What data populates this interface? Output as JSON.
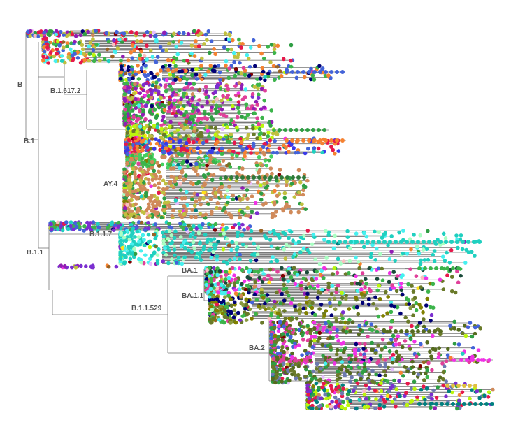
{
  "tree": {
    "clades": [
      {
        "id": "B",
        "label": "B"
      },
      {
        "id": "B.1",
        "label": "B.1"
      },
      {
        "id": "B.1.617.2",
        "label": "B.1.617.2"
      },
      {
        "id": "AY.4",
        "label": "AY.4"
      },
      {
        "id": "B.1.1",
        "label": "B.1.1"
      },
      {
        "id": "B.1.1.7",
        "label": "B.1.1.7"
      },
      {
        "id": "B.1.1.529",
        "label": "B.1.1.529"
      },
      {
        "id": "BA.1",
        "label": "BA.1"
      },
      {
        "id": "BA.1.1",
        "label": "BA.1.1"
      },
      {
        "id": "BA.2",
        "label": "BA.2"
      }
    ],
    "colors": {
      "branch": "#777777",
      "label": "#555555",
      "palette": [
        "#e6194b",
        "#3cb44b",
        "#ffe119",
        "#4363d8",
        "#f58231",
        "#911eb4",
        "#46f0f0",
        "#f032e6",
        "#bcf60c",
        "#fabebe",
        "#008080",
        "#e6beff",
        "#9a6324",
        "#800000",
        "#aaffc3",
        "#808000",
        "#000075",
        "#2f9e44",
        "#c0c040",
        "#d08a5a",
        "#20d0c0",
        "#7b2fd0",
        "#e0409a",
        "#6a7a2a"
      ]
    }
  }
}
